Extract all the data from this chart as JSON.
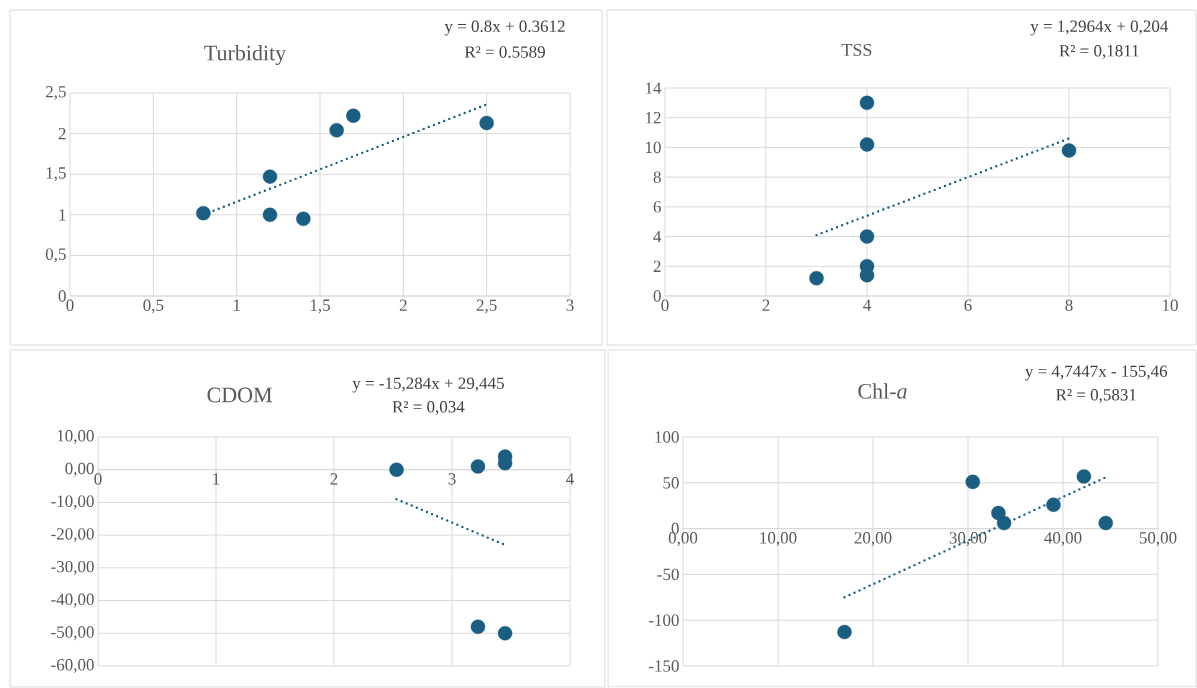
{
  "chart_data": [
    {
      "type": "scatter",
      "title": "Turbidity",
      "annotations": [
        "y = 0.8x + 0.3612",
        "R² = 0.5589"
      ],
      "xlim": [
        0,
        3
      ],
      "ylim": [
        0,
        2.5
      ],
      "xticks": [
        0,
        {
          "value": 0.5,
          "label": "0,5"
        },
        1,
        {
          "value": 1.5,
          "label": "1,5"
        },
        2,
        {
          "value": 2.5,
          "label": "2,5"
        },
        3
      ],
      "yticks": [
        0,
        {
          "value": 0.5,
          "label": "0,5"
        },
        1,
        {
          "value": 1.5,
          "label": "1,5"
        },
        2,
        {
          "value": 2.5,
          "label": "2,5"
        }
      ],
      "grid": true,
      "marker": "circle",
      "series": [
        {
          "color": "#1a5e82",
          "x": [
            0.8,
            1.2,
            1.2,
            1.4,
            1.6,
            1.7,
            2.5
          ],
          "values": [
            1.02,
            1.47,
            1.0,
            0.95,
            2.04,
            2.22,
            2.13
          ]
        },
        {
          "type": "line",
          "color": "#1a5e82",
          "line_style": "dotted",
          "marker": "none",
          "x": [
            0.8,
            2.5
          ],
          "values": [
            1.0,
            2.36
          ]
        }
      ]
    },
    {
      "type": "scatter",
      "title": "TSS",
      "annotations": [
        "y = 1,2964x + 0,204",
        "R² = 0,1811"
      ],
      "xlim": [
        0,
        10
      ],
      "ylim": [
        0,
        14
      ],
      "xticks": [
        0,
        2,
        4,
        6,
        8,
        10
      ],
      "yticks": [
        0,
        2,
        4,
        6,
        8,
        10,
        12,
        14
      ],
      "grid": true,
      "marker": "circle",
      "series": [
        {
          "color": "#1a5e82",
          "x": [
            3,
            4,
            4,
            4,
            4,
            4,
            8
          ],
          "values": [
            1.2,
            13,
            10.2,
            4,
            2,
            1.4,
            9.8
          ]
        },
        {
          "type": "line",
          "color": "#1a5e82",
          "line_style": "dotted",
          "marker": "none",
          "x": [
            3,
            8
          ],
          "values": [
            4.1,
            10.6
          ]
        }
      ]
    },
    {
      "type": "scatter",
      "title": "CDOM",
      "annotations": [
        "y = -15,284x + 29,445",
        "R² = 0,034"
      ],
      "xlim": [
        0,
        4
      ],
      "ylim": [
        -60,
        10
      ],
      "xticks": [
        0,
        1,
        2,
        3,
        4
      ],
      "yticks": [
        {
          "value": -60,
          "label": "-60,00"
        },
        {
          "value": -50,
          "label": "-50,00"
        },
        {
          "value": -40,
          "label": "-40,00"
        },
        {
          "value": -30,
          "label": "-30,00"
        },
        {
          "value": -20,
          "label": "-20,00"
        },
        {
          "value": -10,
          "label": "-10,00"
        },
        {
          "value": 0,
          "label": "0,00"
        },
        {
          "value": 10,
          "label": "10,00"
        }
      ],
      "grid": true,
      "marker": "circle",
      "series": [
        {
          "color": "#1a5e82",
          "x": [
            2.53,
            3.22,
            3.45,
            3.45,
            3.22,
            3.45
          ],
          "values": [
            0,
            1,
            4,
            2,
            -48,
            -50
          ]
        },
        {
          "type": "line",
          "color": "#1a5e82",
          "line_style": "dotted",
          "marker": "none",
          "x": [
            2.53,
            3.45
          ],
          "values": [
            -9,
            -23
          ]
        }
      ]
    },
    {
      "type": "scatter",
      "title": "Chl-*a*",
      "annotations": [
        "y = 4,7447x - 155,46",
        "R² = 0,5831"
      ],
      "xlim": [
        0,
        50
      ],
      "ylim": [
        -150,
        100
      ],
      "xticks": [
        {
          "value": 0,
          "label": "0,00"
        },
        {
          "value": 10,
          "label": "10,00"
        },
        {
          "value": 20,
          "label": "20,00"
        },
        {
          "value": 30,
          "label": "30,00"
        },
        {
          "value": 40,
          "label": "40,00"
        },
        {
          "value": 50,
          "label": "50,00"
        }
      ],
      "yticks": [
        -150,
        -100,
        -50,
        0,
        50,
        100
      ],
      "grid": true,
      "marker": "circle",
      "series": [
        {
          "color": "#1a5e82",
          "x": [
            17,
            30.5,
            33.2,
            33.8,
            39,
            42.2,
            44.5
          ],
          "values": [
            -113,
            51,
            17,
            6,
            26,
            57,
            6
          ]
        },
        {
          "type": "line",
          "color": "#1a5e82",
          "line_style": "dotted",
          "marker": "none",
          "x": [
            17,
            44.5
          ],
          "values": [
            -75,
            56
          ]
        }
      ]
    }
  ]
}
